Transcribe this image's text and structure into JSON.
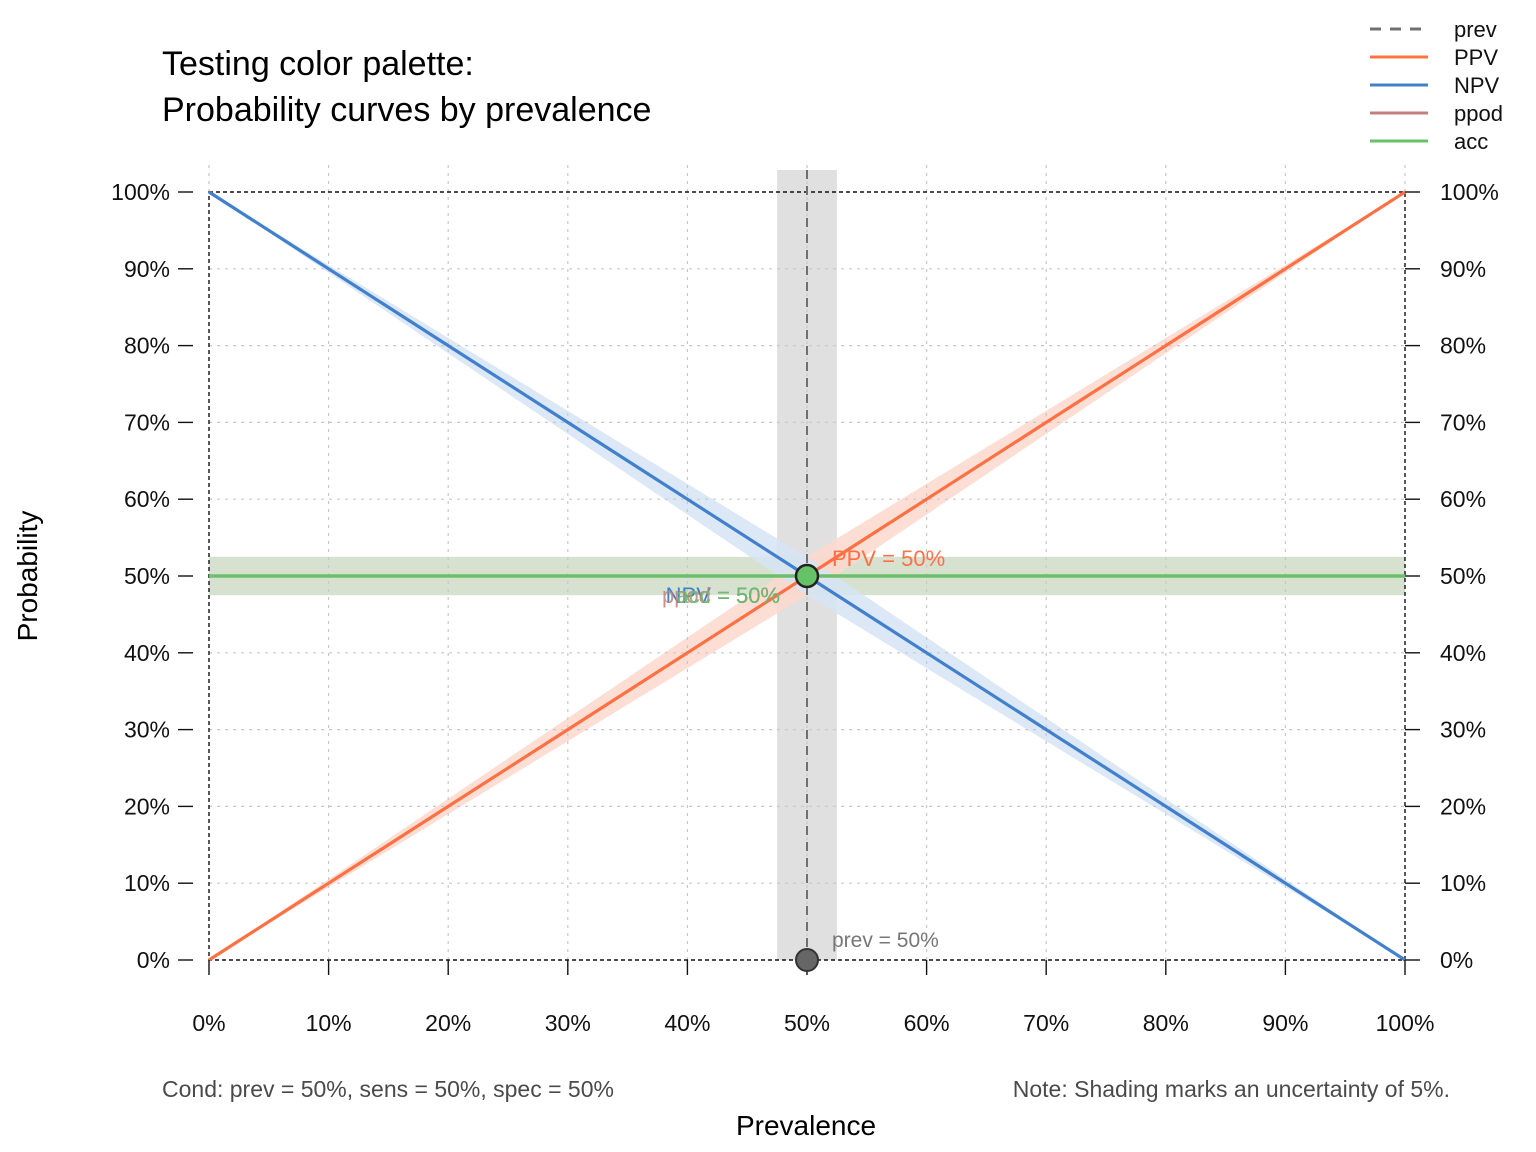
{
  "title": {
    "line1": "Testing color palette:",
    "line2": "Probability curves by prevalence"
  },
  "colors": {
    "prev": "#707070",
    "PPV": "#FF7043",
    "NPV": "#4080CC",
    "ppod": "#C08080",
    "acc": "#66C266",
    "prev_band": "#E0E0E0",
    "ppv_band": "#FDD8CC",
    "npv_band": "#D6E4F5",
    "acc_band": "#D7E1CF"
  },
  "footer": {
    "cond": "Cond:  prev = 50%, sens = 50%, spec = 50%",
    "note": "Note:  Shading marks an uncertainty of 5%."
  },
  "chart_data": {
    "type": "line",
    "xlabel": "Prevalence",
    "ylabel": "Probability",
    "xlim": [
      0,
      1
    ],
    "ylim": [
      0,
      1
    ],
    "grid": true,
    "legend_position": "top-right",
    "uncertainty": 0.05,
    "x_ticks": [
      "0%",
      "10%",
      "20%",
      "30%",
      "40%",
      "50%",
      "60%",
      "70%",
      "80%",
      "90%",
      "100%"
    ],
    "y_ticks": [
      "0%",
      "10%",
      "20%",
      "30%",
      "40%",
      "50%",
      "60%",
      "70%",
      "80%",
      "90%",
      "100%"
    ],
    "legend": [
      {
        "name": "prev",
        "style": "dashed",
        "color": "#707070"
      },
      {
        "name": "PPV",
        "style": "solid",
        "color": "#FF7043"
      },
      {
        "name": "NPV",
        "style": "solid",
        "color": "#4080CC"
      },
      {
        "name": "ppod",
        "style": "solid",
        "color": "#C08080"
      },
      {
        "name": "acc",
        "style": "solid",
        "color": "#66C266"
      }
    ],
    "series": [
      {
        "name": "PPV",
        "x": [
          0,
          0.1,
          0.2,
          0.3,
          0.4,
          0.5,
          0.6,
          0.7,
          0.8,
          0.9,
          1.0
        ],
        "y": [
          0,
          0.1,
          0.2,
          0.3,
          0.4,
          0.5,
          0.6,
          0.7,
          0.8,
          0.9,
          1.0
        ]
      },
      {
        "name": "NPV",
        "x": [
          0,
          0.1,
          0.2,
          0.3,
          0.4,
          0.5,
          0.6,
          0.7,
          0.8,
          0.9,
          1.0
        ],
        "y": [
          1.0,
          0.9,
          0.8,
          0.7,
          0.6,
          0.5,
          0.4,
          0.3,
          0.2,
          0.1,
          0
        ]
      },
      {
        "name": "ppod",
        "x": [
          0,
          1.0
        ],
        "y": [
          0.5,
          0.5
        ]
      },
      {
        "name": "acc",
        "x": [
          0,
          1.0
        ],
        "y": [
          0.5,
          0.5
        ]
      }
    ],
    "prev_marker": {
      "x": 0.5,
      "y": 0
    },
    "point_labels": [
      {
        "text": "PPV = 50%",
        "series": "PPV"
      },
      {
        "text": "NPV = 50%",
        "series": "NPV"
      },
      {
        "text": "ppod = 50%",
        "series": "ppod"
      },
      {
        "text": "acc = 50%",
        "series": "acc"
      },
      {
        "text": "prev = 50%",
        "series": "prev"
      }
    ]
  }
}
